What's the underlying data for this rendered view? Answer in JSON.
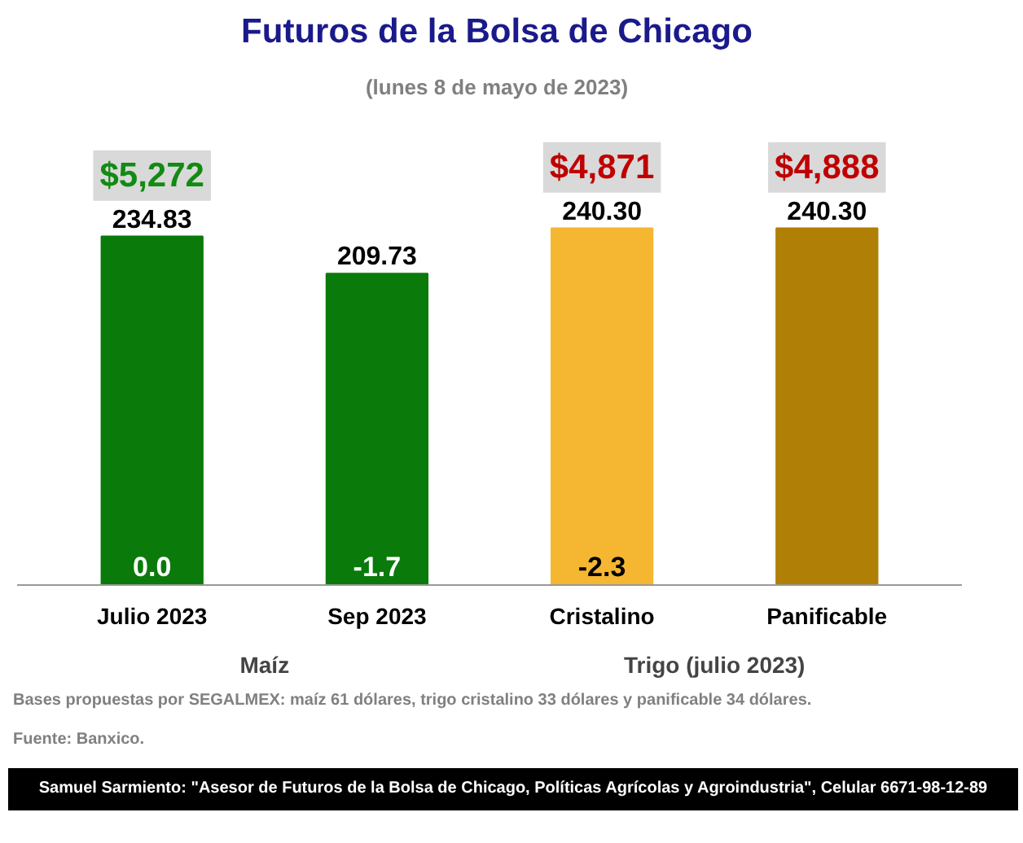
{
  "chart_data": {
    "type": "bar",
    "title": "Futuros de la Bolsa de Chicago",
    "subtitle": "(lunes 8 de mayo de 2023)",
    "categories": [
      "Julio 2023",
      "Sep 2023",
      "Cristalino",
      "Panificable"
    ],
    "values": [
      234.83,
      209.73,
      240.3,
      240.3
    ],
    "value_labels": [
      "234.83",
      "209.73",
      "240.30",
      "240.30"
    ],
    "colors": [
      "#0a7a0a",
      "#0a7a0a",
      "#f5b731",
      "#b07f05"
    ],
    "grid": false,
    "annotations": [
      "$5,272",
      "$4,871",
      "$4,888",
      "0.0",
      "-1.7",
      "-2.3",
      "Maíz",
      "Trigo (julio 2023)",
      "Bases propuestas por SEGALMEX: maíz 61 dólares, trigo cristalino 33 dólares y panificable 34 dólares.",
      "Fuente: Banxico.",
      "Samuel Sarmiento: \"Asesor de Futuros de la Bolsa de Chicago, Políticas Agrícolas y Agroindustria\", Celular 6671-98-12-89"
    ]
  }
}
